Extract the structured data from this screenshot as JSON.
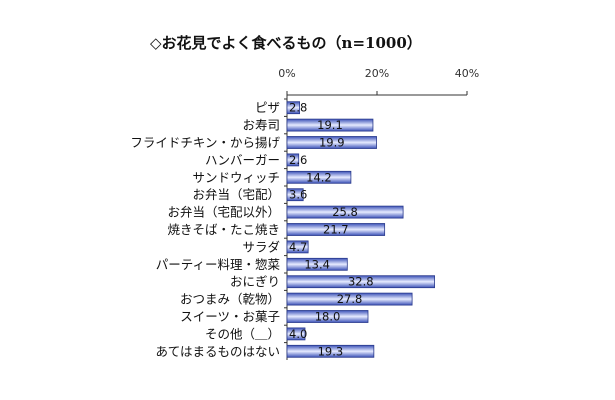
{
  "chart_data": {
    "type": "bar",
    "orientation": "horizontal",
    "title": "◇お花見でよく食べるもの（n=1000）",
    "xlabel": "",
    "ylabel": "",
    "xlim": [
      0,
      40
    ],
    "ticks": [
      0,
      20,
      40
    ],
    "tick_labels": [
      "0%",
      "20%",
      "40%"
    ],
    "categories": [
      "ピザ",
      "お寿司",
      "フライドチキン・から揚げ",
      "ハンバーガー",
      "サンドウィッチ",
      "お弁当（宅配）",
      "お弁当（宅配以外）",
      "焼きそば・たこ焼き",
      "サラダ",
      "パーティー料理・惣菜",
      "おにぎり",
      "おつまみ（乾物）",
      "スイーツ・お菓子",
      "その他（＿）",
      "あてはまるものはない"
    ],
    "values": [
      2.8,
      19.1,
      19.9,
      2.6,
      14.2,
      3.6,
      25.8,
      21.7,
      4.7,
      13.4,
      32.8,
      27.8,
      18.0,
      4.0,
      19.3
    ],
    "value_labels": [
      "2.8",
      "19.1",
      "19.9",
      "2.6",
      "14.2",
      "3.6",
      "25.8",
      "21.7",
      "4.7",
      "13.4",
      "32.8",
      "27.8",
      "18.0",
      "4.0",
      "19.3"
    ],
    "colors": {
      "bar_fill_edge": "#3c52b8",
      "bar_fill_mid": "#e6ebff",
      "bar_stroke": "#2a3a8c",
      "axis": "#333333"
    }
  }
}
